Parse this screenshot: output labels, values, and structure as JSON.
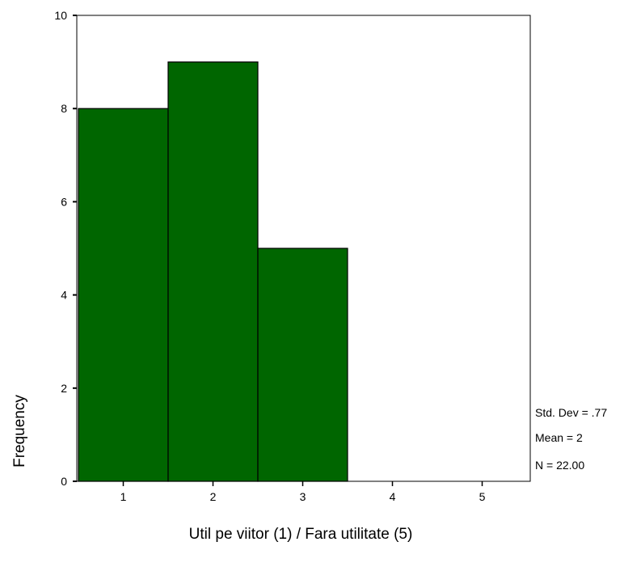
{
  "chart_data": {
    "type": "bar",
    "title": "",
    "xlabel": "Util pe viitor (1) / Fara utilitate (5)",
    "ylabel": "Frequency",
    "categories": [
      "1",
      "2",
      "3",
      "4",
      "5"
    ],
    "values": [
      8,
      9,
      5,
      0,
      0
    ],
    "yticks": [
      "0",
      "2",
      "4",
      "6",
      "8",
      "10"
    ],
    "ylim": [
      0,
      10
    ],
    "grid": false,
    "legend": "none",
    "bar_color": "#006600",
    "stats": {
      "std_dev": "Std. Dev = .77",
      "mean": "Mean = 2",
      "n": "N = 22.00"
    }
  }
}
